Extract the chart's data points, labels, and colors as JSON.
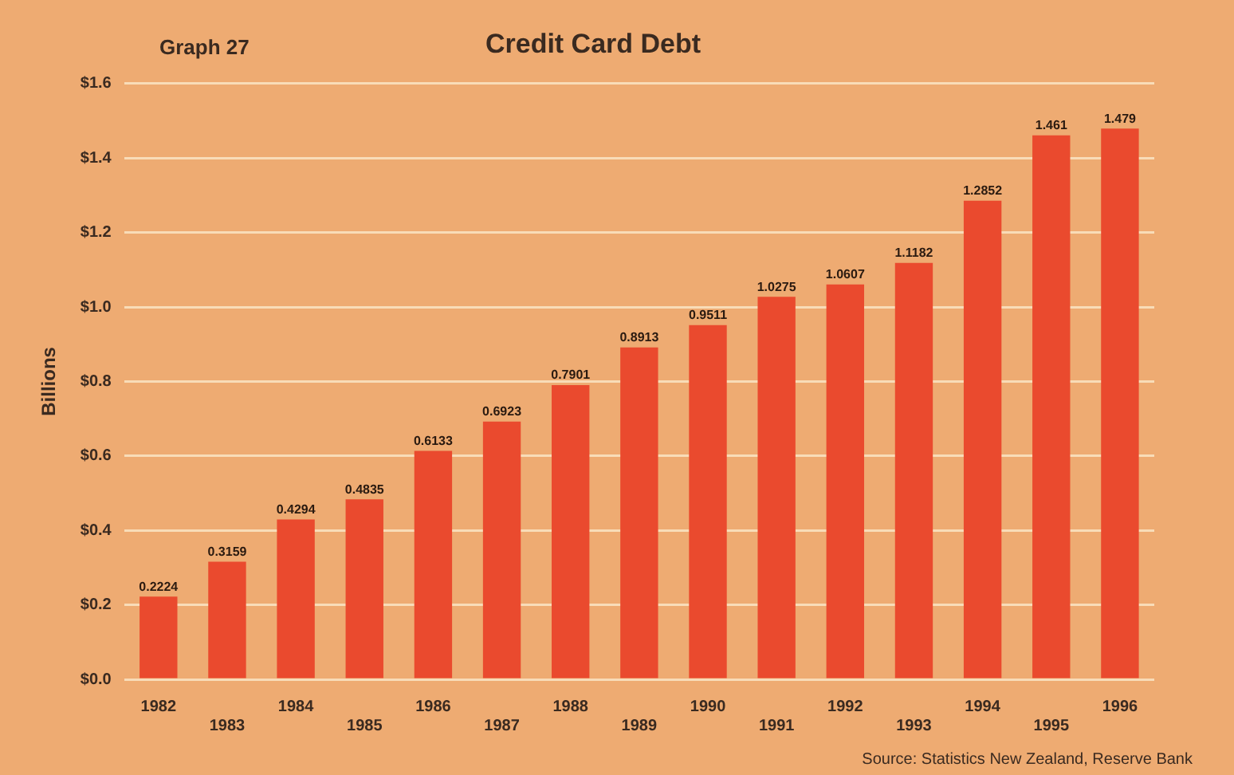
{
  "chart_data": {
    "type": "bar",
    "title": "Credit Card Debt",
    "ylabel": "Billions",
    "annotations": [
      "Graph 27",
      "Source: Statistics New Zealand, Reserve Bank"
    ],
    "categories": [
      "1982",
      "1983",
      "1984",
      "1985",
      "1986",
      "1987",
      "1988",
      "1989",
      "1990",
      "1991",
      "1992",
      "1993",
      "1994",
      "1995",
      "1996"
    ],
    "values": [
      0.2224,
      0.3159,
      0.4294,
      0.4835,
      0.6133,
      0.6923,
      0.7901,
      0.8913,
      0.9511,
      1.0275,
      1.0607,
      1.1182,
      1.2852,
      1.461,
      1.479
    ],
    "color": "#ea4a2e",
    "data_labels": true,
    "grid": "y",
    "ylim": [
      0,
      1.6
    ],
    "yticks": [
      {
        "value": 0,
        "label": "$0.0"
      },
      {
        "value": 0.2,
        "label": "$0.2"
      },
      {
        "value": 0.4,
        "label": "$0.4"
      },
      {
        "value": 0.6,
        "label": "$0.6"
      },
      {
        "value": 0.8,
        "label": "$0.8"
      },
      {
        "value": 1,
        "label": "$1.0"
      },
      {
        "value": 1.2,
        "label": "$1.2"
      },
      {
        "value": 1.4,
        "label": "$1.4"
      },
      {
        "value": 1.6,
        "label": "$1.6"
      }
    ]
  }
}
